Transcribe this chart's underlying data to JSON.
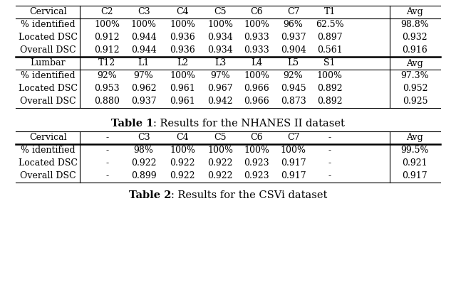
{
  "cervical_header": [
    "Cervical",
    "C2",
    "C3",
    "C4",
    "C5",
    "C6",
    "C7",
    "T1",
    "Avg"
  ],
  "cervical_rows": [
    [
      "% identified",
      "100%",
      "100%",
      "100%",
      "100%",
      "100%",
      "96%",
      "62.5%",
      "98.8%"
    ],
    [
      "Located DSC",
      "0.912",
      "0.944",
      "0.936",
      "0.934",
      "0.933",
      "0.937",
      "0.897",
      "0.932"
    ],
    [
      "Overall DSC",
      "0.912",
      "0.944",
      "0.936",
      "0.934",
      "0.933",
      "0.904",
      "0.561",
      "0.916"
    ]
  ],
  "lumbar_header": [
    "Lumbar",
    "T12",
    "L1",
    "L2",
    "L3",
    "L4",
    "L5",
    "S1",
    "Avg"
  ],
  "lumbar_rows": [
    [
      "% identified",
      "92%",
      "97%",
      "100%",
      "97%",
      "100%",
      "92%",
      "100%",
      "97.3%"
    ],
    [
      "Located DSC",
      "0.953",
      "0.962",
      "0.961",
      "0.967",
      "0.966",
      "0.945",
      "0.892",
      "0.952"
    ],
    [
      "Overall DSC",
      "0.880",
      "0.937",
      "0.961",
      "0.942",
      "0.966",
      "0.873",
      "0.892",
      "0.925"
    ]
  ],
  "cap1_bold": "Table 1",
  "cap1_rest": ": Results for the NHANES II dataset",
  "cervical2_header": [
    "Cervical",
    "-",
    "C3",
    "C4",
    "C5",
    "C6",
    "C7",
    "-",
    "Avg"
  ],
  "cervical2_rows": [
    [
      "% identified",
      "-",
      "98%",
      "100%",
      "100%",
      "100%",
      "100%",
      "-",
      "99.5%"
    ],
    [
      "Located DSC",
      "-",
      "0.922",
      "0.922",
      "0.922",
      "0.923",
      "0.917",
      "-",
      "0.921"
    ],
    [
      "Overall DSC",
      "-",
      "0.899",
      "0.922",
      "0.922",
      "0.923",
      "0.917",
      "-",
      "0.917"
    ]
  ],
  "cap2_bold": "Table 2",
  "cap2_rest": ": Results for the CSVi dataset",
  "bg_color": "#ffffff",
  "font_size": 9.0,
  "cap_font_size": 10.5
}
